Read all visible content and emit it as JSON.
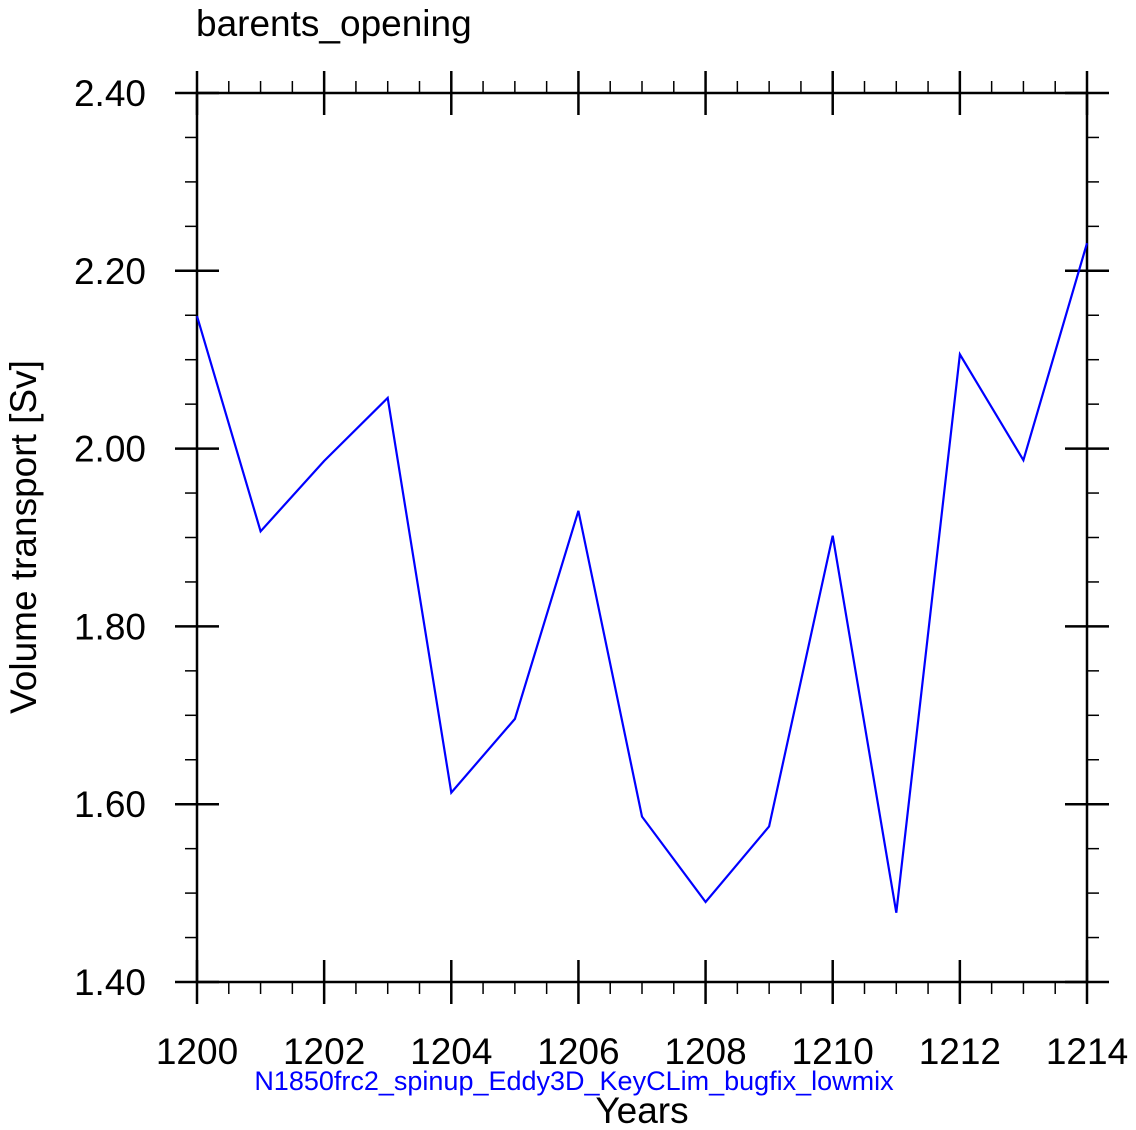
{
  "chart_data": {
    "type": "line",
    "title": "barents_opening",
    "xlabel": "Years",
    "ylabel": "Volume transport [Sv]",
    "x": [
      1200,
      1201,
      1202,
      1203,
      1204,
      1205,
      1206,
      1207,
      1208,
      1209,
      1210,
      1211,
      1212,
      1213,
      1214
    ],
    "series": [
      {
        "name": "N1850frc2_spinup_Eddy3D_KeyCLim_bugfix_lowmix",
        "color": "#0000ff",
        "values": [
          2.149,
          1.907,
          1.986,
          2.057,
          1.613,
          1.696,
          1.93,
          1.586,
          1.49,
          1.575,
          1.902,
          1.478,
          2.106,
          1.987,
          2.231
        ]
      }
    ],
    "xlim": [
      1200,
      1214
    ],
    "ylim": [
      1.4,
      2.4
    ],
    "x_ticks": [
      1200,
      1202,
      1204,
      1206,
      1208,
      1210,
      1212,
      1214
    ],
    "x_tick_labels": [
      "1200",
      "1202",
      "1204",
      "1206",
      "1208",
      "1210",
      "1212",
      "1214"
    ],
    "x_minor_step": 0.5,
    "y_ticks": [
      1.4,
      1.6,
      1.8,
      2.0,
      2.2,
      2.4
    ],
    "y_tick_labels": [
      "1.40",
      "1.60",
      "1.80",
      "2.00",
      "2.20",
      "2.40"
    ],
    "y_minor_step": 0.05,
    "grid": false,
    "legend": {
      "position": "below-x-axis",
      "entries": [
        "N1850frc2_spinup_Eddy3D_KeyCLim_bugfix_lowmix"
      ]
    }
  },
  "labels": {
    "title": "barents_opening",
    "xlabel": "Years",
    "ylabel": "Volume transport [Sv]",
    "series_label": "N1850frc2_spinup_Eddy3D_KeyCLim_bugfix_lowmix"
  },
  "colors": {
    "series": "#0000ff",
    "axis": "#000000",
    "background": "#ffffff"
  }
}
